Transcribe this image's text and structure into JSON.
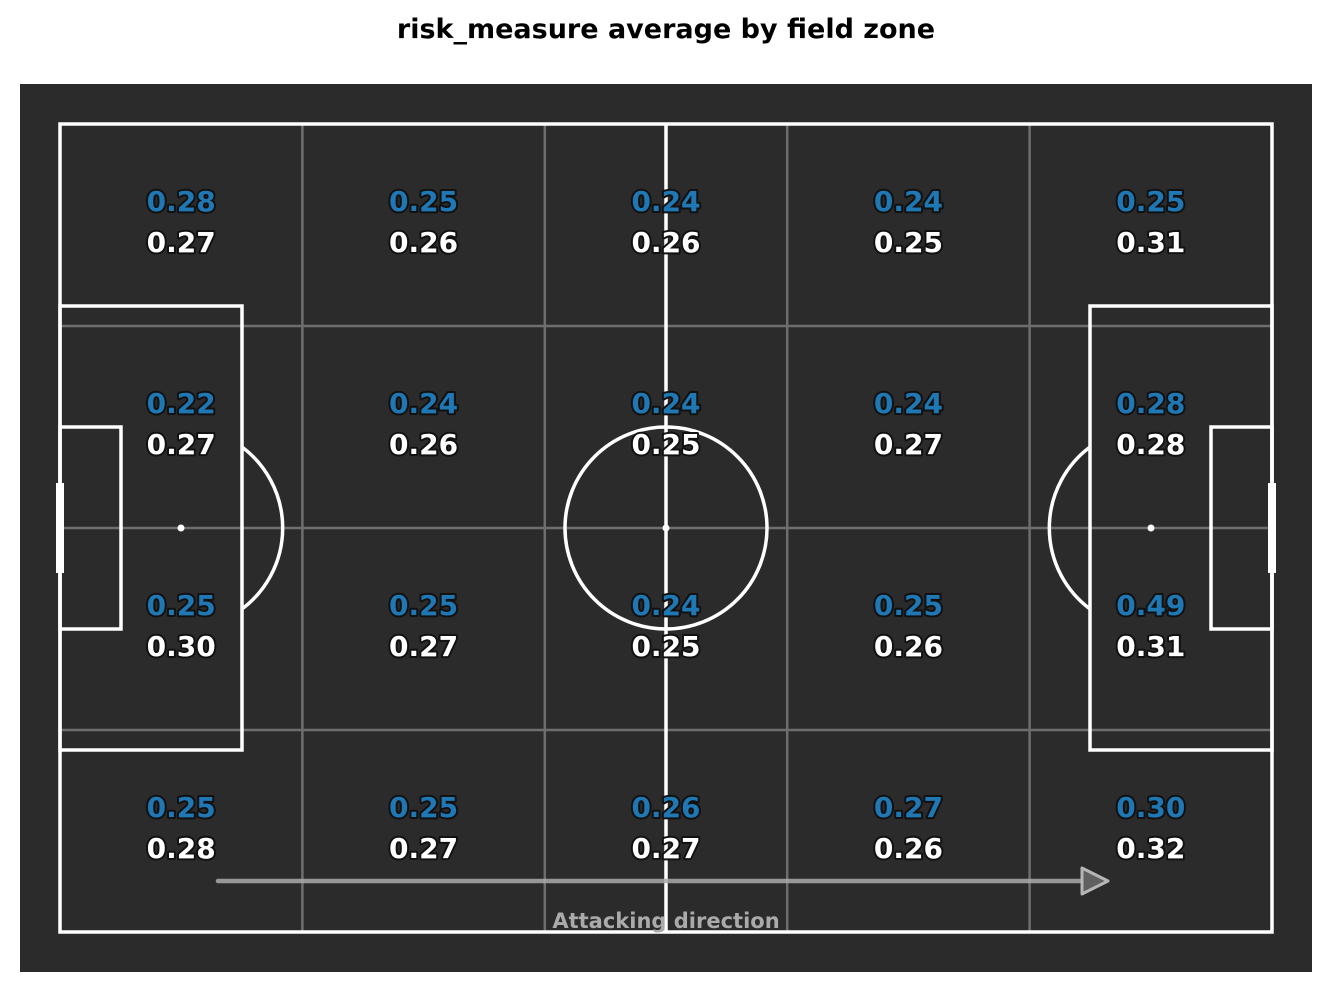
{
  "chart_data": {
    "type": "heatmap",
    "title": "risk_measure average by field zone",
    "columns": 5,
    "rows": 4,
    "values_primary": [
      [
        0.28,
        0.25,
        0.24,
        0.24,
        0.25
      ],
      [
        0.22,
        0.24,
        0.24,
        0.24,
        0.28
      ],
      [
        0.25,
        0.25,
        0.24,
        0.25,
        0.49
      ],
      [
        0.25,
        0.25,
        0.26,
        0.27,
        0.3
      ]
    ],
    "values_secondary": [
      [
        0.27,
        0.26,
        0.26,
        0.25,
        0.31
      ],
      [
        0.27,
        0.26,
        0.25,
        0.27,
        0.28
      ],
      [
        0.3,
        0.27,
        0.25,
        0.26,
        0.31
      ],
      [
        0.28,
        0.27,
        0.27,
        0.26,
        0.32
      ]
    ],
    "annotation": "Attacking direction",
    "colors": {
      "pitch": "#2b2b2b",
      "lines": "#ffffff",
      "grid": "#6e6e6e",
      "primary_text": "#1f77b4",
      "secondary_text": "#ffffff",
      "arrow": "#aaaaaa"
    }
  }
}
